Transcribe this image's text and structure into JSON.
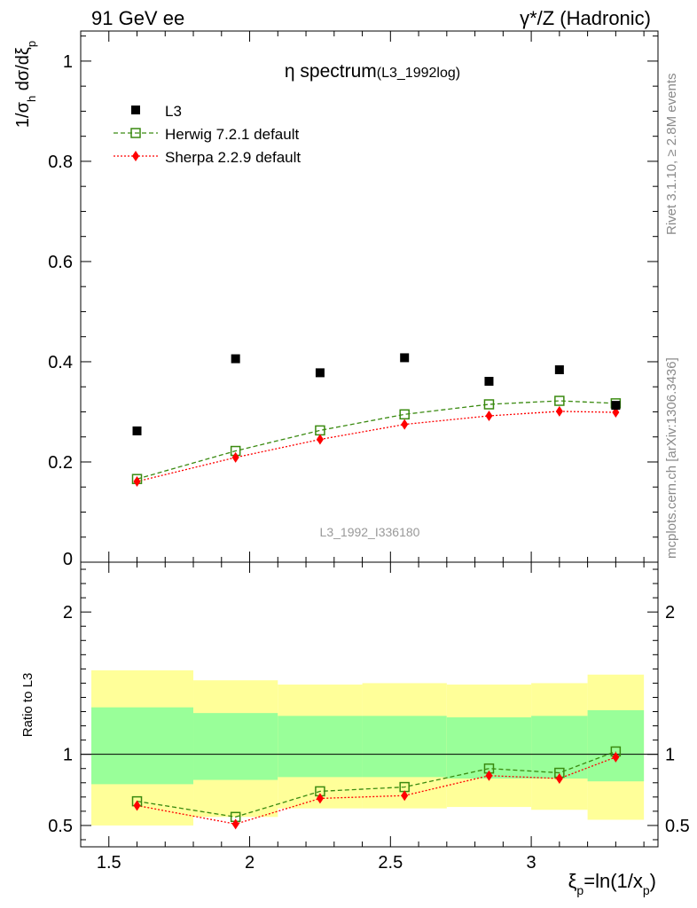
{
  "header": {
    "left": "91 GeV ee",
    "right": "γ*/Z (Hadronic)"
  },
  "side_text": {
    "rivet": "Rivet 3.1.10, ≥ 2.8M events",
    "mcplots": "mcplots.cern.ch [arXiv:1306.3436]"
  },
  "colors": {
    "data": "#000000",
    "herwig": "#3a8a10",
    "sherpa": "#ff0000",
    "band_inner": "#99ff99",
    "band_outer": "#ffff99",
    "watermark": "#999999"
  },
  "chart_data": [
    {
      "type": "scatter",
      "title": "η spectrum",
      "title_suffix": "(L3_1992log)",
      "ylabel": "1/σ_h dσ/dξ_p",
      "watermark": "L3_1992_I336180",
      "xlim": [
        1.4,
        3.45
      ],
      "ylim": [
        0,
        1.06
      ],
      "y_ticks": [
        0,
        0.2,
        0.4,
        0.6,
        0.8,
        1
      ],
      "y_tick_labels": [
        "0",
        "0.2",
        "0.4",
        "0.6",
        "0.8",
        "1"
      ],
      "legend_position": "top-left",
      "x": [
        1.6,
        1.95,
        2.25,
        2.55,
        2.85,
        3.1,
        3.3
      ],
      "series": [
        {
          "name": "L3",
          "style": "square-filled",
          "values": [
            0.262,
            0.406,
            0.378,
            0.408,
            0.361,
            0.384,
            0.313
          ]
        },
        {
          "name": "Herwig 7.2.1 default",
          "style": "square-open-dashed",
          "values": [
            0.166,
            0.222,
            0.263,
            0.295,
            0.315,
            0.322,
            0.317
          ]
        },
        {
          "name": "Sherpa 2.2.9 default",
          "style": "diamond-dotted",
          "values": [
            0.161,
            0.209,
            0.245,
            0.275,
            0.292,
            0.301,
            0.299
          ]
        }
      ]
    },
    {
      "type": "line",
      "ylabel": "Ratio to L3",
      "xlabel": "ξ_p=ln(1/x_p)",
      "xlim": [
        1.4,
        3.45
      ],
      "ylim": [
        0.35,
        2.35
      ],
      "x_ticks": [
        1.5,
        2,
        2.5,
        3
      ],
      "x_tick_labels": [
        "1.5",
        "2",
        "2.5",
        "3"
      ],
      "y_ticks": [
        0.5,
        1,
        2
      ],
      "y_tick_labels": [
        "0.5",
        "1",
        "2"
      ],
      "reference_line": 1,
      "bands": [
        {
          "x_lo": 1.4,
          "x_hi": 1.8,
          "outer": [
            0.5,
            1.59
          ],
          "inner": [
            0.79,
            1.33
          ]
        },
        {
          "x_lo": 1.8,
          "x_hi": 2.1,
          "outer": [
            0.56,
            1.52
          ],
          "inner": [
            0.82,
            1.29
          ]
        },
        {
          "x_lo": 2.1,
          "x_hi": 2.4,
          "outer": [
            0.62,
            1.49
          ],
          "inner": [
            0.84,
            1.27
          ]
        },
        {
          "x_lo": 2.4,
          "x_hi": 2.7,
          "outer": [
            0.62,
            1.5
          ],
          "inner": [
            0.84,
            1.27
          ]
        },
        {
          "x_lo": 2.7,
          "x_hi": 3.0,
          "outer": [
            0.63,
            1.49
          ],
          "inner": [
            0.83,
            1.26
          ]
        },
        {
          "x_lo": 3.0,
          "x_hi": 3.2,
          "outer": [
            0.61,
            1.5
          ],
          "inner": [
            0.83,
            1.27
          ]
        },
        {
          "x_lo": 3.2,
          "x_hi": 3.4,
          "outer": [
            0.54,
            1.56
          ],
          "inner": [
            0.81,
            1.31
          ]
        }
      ],
      "x": [
        1.6,
        1.95,
        2.25,
        2.55,
        2.85,
        3.1,
        3.3
      ],
      "series": [
        {
          "name": "Herwig 7.2.1 default",
          "style": "square-open-dashed",
          "values": [
            0.67,
            0.56,
            0.74,
            0.77,
            0.9,
            0.87,
            1.02
          ]
        },
        {
          "name": "Sherpa 2.2.9 default",
          "style": "diamond-dotted",
          "values": [
            0.64,
            0.51,
            0.69,
            0.71,
            0.85,
            0.83,
            0.98
          ]
        }
      ]
    }
  ]
}
